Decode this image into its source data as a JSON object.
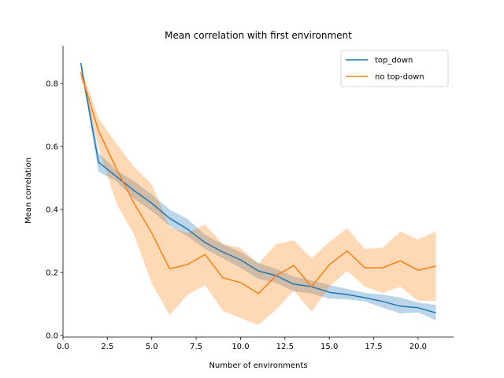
{
  "chart_data": {
    "type": "line",
    "title": "Mean correlation with first environment",
    "xlabel": "Number of environments",
    "ylabel": "Mean correlation",
    "xlim": [
      0,
      22
    ],
    "ylim": [
      -0.005,
      0.92
    ],
    "x_ticks": [
      0.0,
      2.5,
      5.0,
      7.5,
      10.0,
      12.5,
      15.0,
      17.5,
      20.0
    ],
    "x_tick_labels": [
      "0.0",
      "2.5",
      "5.0",
      "7.5",
      "10.0",
      "12.5",
      "15.0",
      "17.5",
      "20.0"
    ],
    "y_ticks": [
      0.0,
      0.2,
      0.4,
      0.6,
      0.8
    ],
    "y_tick_labels": [
      "0.0",
      "0.2",
      "0.4",
      "0.6",
      "0.8"
    ],
    "grid": false,
    "legend_position": "upper right",
    "x": [
      1,
      2,
      3,
      4,
      5,
      6,
      7,
      8,
      9,
      10,
      11,
      12,
      13,
      14,
      15,
      16,
      17,
      18,
      19,
      20,
      21
    ],
    "series": [
      {
        "name": "top_down",
        "color": "#1f77b4",
        "band_color": "#1f77b4",
        "values": [
          0.865,
          0.55,
          0.505,
          0.46,
          0.42,
          0.372,
          0.338,
          0.295,
          0.265,
          0.24,
          0.205,
          0.19,
          0.163,
          0.155,
          0.137,
          0.13,
          0.12,
          0.108,
          0.093,
          0.088,
          0.072
        ],
        "lower": [
          0.855,
          0.52,
          0.49,
          0.435,
          0.395,
          0.348,
          0.315,
          0.275,
          0.245,
          0.215,
          0.18,
          0.167,
          0.14,
          0.133,
          0.117,
          0.115,
          0.108,
          0.088,
          0.07,
          0.073,
          0.048
        ],
        "upper": [
          0.875,
          0.58,
          0.525,
          0.49,
          0.448,
          0.4,
          0.37,
          0.32,
          0.29,
          0.265,
          0.23,
          0.212,
          0.187,
          0.175,
          0.16,
          0.148,
          0.135,
          0.13,
          0.12,
          0.105,
          0.097
        ]
      },
      {
        "name": "no top-down",
        "color": "#ff7f0e",
        "band_color": "#ff7f0e",
        "values": [
          0.835,
          0.65,
          0.53,
          0.42,
          0.325,
          0.212,
          0.225,
          0.257,
          0.183,
          0.168,
          0.133,
          0.19,
          0.222,
          0.155,
          0.225,
          0.268,
          0.215,
          0.215,
          0.237,
          0.207,
          0.22
        ],
        "lower": [
          0.82,
          0.6,
          0.42,
          0.32,
          0.165,
          0.065,
          0.128,
          0.16,
          0.078,
          0.055,
          0.033,
          0.082,
          0.143,
          0.075,
          0.155,
          0.205,
          0.155,
          0.135,
          0.155,
          0.11,
          0.11
        ],
        "upper": [
          0.85,
          0.69,
          0.61,
          0.535,
          0.48,
          0.345,
          0.325,
          0.352,
          0.29,
          0.278,
          0.228,
          0.29,
          0.302,
          0.245,
          0.297,
          0.34,
          0.275,
          0.278,
          0.33,
          0.305,
          0.33
        ]
      }
    ]
  }
}
